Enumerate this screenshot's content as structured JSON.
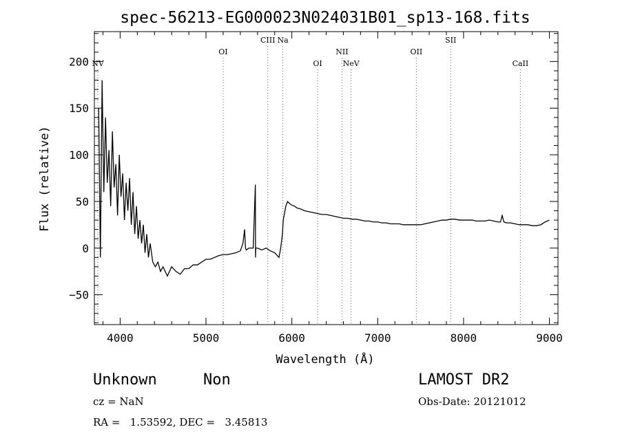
{
  "chart_data": {
    "type": "line",
    "title": "spec-56213-EG000023N024031B01_sp13-168.fits",
    "xlabel": "Wavelength (Å)",
    "ylabel": "Flux (relative)",
    "xlim": [
      3700,
      9100
    ],
    "ylim": [
      -82,
      232
    ],
    "x_ticks": [
      4000,
      5000,
      6000,
      7000,
      8000,
      9000
    ],
    "x_tick_labels": [
      "4000",
      "5000",
      "6000",
      "7000",
      "8000",
      "9000"
    ],
    "y_ticks": [
      -50,
      0,
      50,
      100,
      150,
      200
    ],
    "y_tick_labels": [
      "−50",
      "0",
      "50",
      "100",
      "150",
      "200"
    ],
    "grid": false,
    "series": [
      {
        "x": [
          3750,
          3770,
          3790,
          3810,
          3830,
          3850,
          3870,
          3890,
          3910,
          3930,
          3950,
          3970,
          3990,
          4010,
          4030,
          4050,
          4070,
          4090,
          4110,
          4130,
          4150,
          4170,
          4190,
          4210,
          4230,
          4250,
          4270,
          4290,
          4310,
          4330,
          4350,
          4380,
          4410,
          4440,
          4470,
          4500,
          4550,
          4600,
          4650,
          4700,
          4750,
          4800,
          4850,
          4900,
          4950,
          5000,
          5050,
          5100,
          5150,
          5200,
          5250,
          5300,
          5350,
          5400,
          5430,
          5450,
          5460,
          5470,
          5500,
          5550,
          5575,
          5577,
          5580,
          5600,
          5650,
          5700,
          5750,
          5800,
          5830,
          5850,
          5870,
          5890,
          5900,
          5910,
          5930,
          5950,
          5970,
          6000,
          6030,
          6060,
          6100,
          6150,
          6200,
          6250,
          6300,
          6350,
          6400,
          6450,
          6500,
          6550,
          6600,
          6650,
          6700,
          6750,
          6800,
          6850,
          6900,
          6950,
          7000,
          7050,
          7100,
          7150,
          7200,
          7250,
          7300,
          7350,
          7400,
          7450,
          7500,
          7550,
          7600,
          7650,
          7700,
          7750,
          7800,
          7850,
          7900,
          7950,
          8000,
          8050,
          8100,
          8150,
          8200,
          8250,
          8300,
          8350,
          8400,
          8430,
          8450,
          8470,
          8500,
          8550,
          8600,
          8650,
          8700,
          8750,
          8800,
          8850,
          8900,
          8950,
          9000
        ],
        "y": [
          150,
          -10,
          180,
          60,
          140,
          70,
          105,
          45,
          125,
          65,
          90,
          35,
          100,
          55,
          80,
          30,
          70,
          40,
          75,
          25,
          60,
          15,
          45,
          10,
          30,
          5,
          25,
          -5,
          15,
          -10,
          5,
          -15,
          -20,
          -15,
          -25,
          -20,
          -30,
          -20,
          -25,
          -28,
          -22,
          -22,
          -18,
          -18,
          -15,
          -12,
          -12,
          -10,
          -8,
          -7,
          -7,
          -6,
          -5,
          -3,
          5,
          20,
          0,
          -2,
          0,
          0,
          68,
          -10,
          0,
          0,
          -2,
          0,
          -3,
          -5,
          -8,
          -10,
          0,
          15,
          30,
          35,
          45,
          50,
          48,
          46,
          45,
          43,
          42,
          40,
          39,
          38,
          37,
          36,
          36,
          35,
          34,
          33,
          32,
          32,
          31,
          31,
          30,
          29,
          29,
          28,
          28,
          27,
          27,
          26,
          26,
          26,
          25,
          25,
          25,
          25,
          25,
          26,
          27,
          28,
          29,
          30,
          30,
          31,
          31,
          30,
          30,
          30,
          30,
          29,
          29,
          29,
          30,
          29,
          28,
          28,
          35,
          28,
          27,
          27,
          26,
          25,
          25,
          25,
          24,
          24,
          25,
          28,
          30
        ]
      }
    ],
    "line_markers": [
      {
        "label": "NV",
        "x": 3740,
        "row": 3
      },
      {
        "label": "OI",
        "x": 5200,
        "row": 2
      },
      {
        "label": "CIII",
        "x": 5720,
        "row": 1
      },
      {
        "label": "Na",
        "x": 5895,
        "row": 1
      },
      {
        "label": "OI",
        "x": 6300,
        "row": 3
      },
      {
        "label": "NII",
        "x": 6584,
        "row": 2
      },
      {
        "label": "NeV",
        "x": 6690,
        "row": 3
      },
      {
        "label": "OII",
        "x": 7450,
        "row": 2
      },
      {
        "label": "SII",
        "x": 7850,
        "row": 1
      },
      {
        "label": "CaII",
        "x": 8662,
        "row": 3
      }
    ]
  },
  "info": {
    "class_label": "Unknown",
    "subclass_label": "Non",
    "survey": "LAMOST DR2",
    "cz": "cz = NaN",
    "obs_date": "Obs-Date: 20121012",
    "radec": "RA =   1.53592, DEC =   3.45813"
  }
}
